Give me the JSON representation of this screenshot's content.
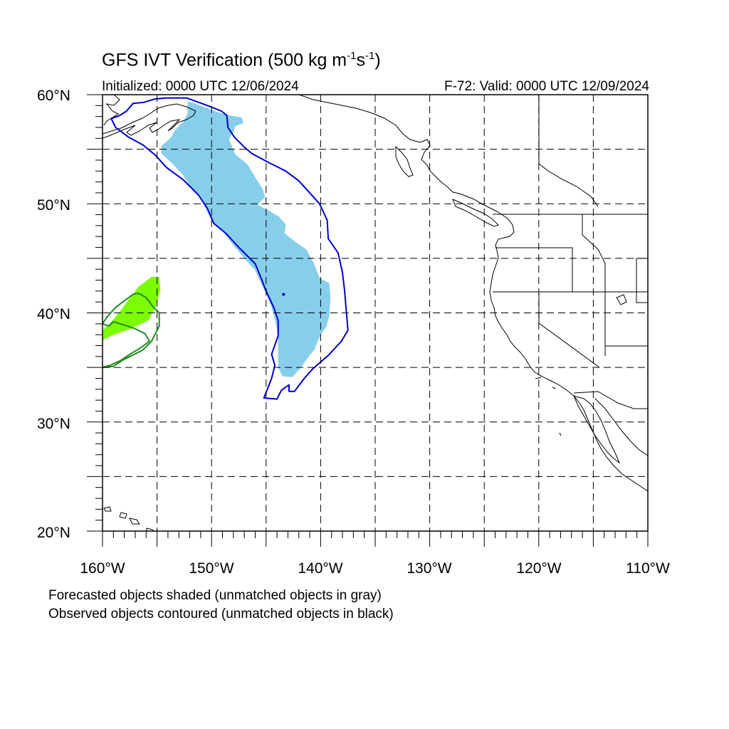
{
  "title": {
    "main": "GFS IVT Verification (500 kg m",
    "exp1": "-1",
    "mid": "s",
    "exp2": "-1",
    "close": ")"
  },
  "init_label": "Initialized: 0000 UTC 12/06/2024",
  "valid_label": "F-72: Valid: 0000 UTC 12/09/2024",
  "lat_labels": [
    "60°N",
    "50°N",
    "40°N",
    "30°N",
    "20°N"
  ],
  "lon_labels": [
    "160°W",
    "150°W",
    "140°W",
    "130°W",
    "120°W",
    "110°W"
  ],
  "legend": {
    "line1": "Forecasted objects shaded (unmatched objects in gray)",
    "line2": "Observed objects contoured (unmatched objects in black)"
  },
  "map": {
    "lon_range": [
      -160,
      -110
    ],
    "lat_range": [
      20,
      60
    ],
    "grid_lons": [
      -155,
      -150,
      -145,
      -140,
      -135,
      -130,
      -125,
      -120,
      -115
    ],
    "grid_lats": [
      25,
      30,
      35,
      40,
      45,
      50,
      55
    ],
    "colors": {
      "forecast_object_1": "#87CEEB",
      "observed_object_1": "#0000CD",
      "forecast_object_2": "#7CFC00",
      "observed_object_2": "#228B22",
      "coastline": "#000000"
    },
    "forecast_objects": [
      {
        "id": "fc-ar-main",
        "color": "#87CEEB",
        "points": [
          [
            -152.2,
            59.4
          ],
          [
            -151.0,
            59.0
          ],
          [
            -149.7,
            58.5
          ],
          [
            -148.8,
            58.2
          ],
          [
            -147.2,
            57.9
          ],
          [
            -147.1,
            57.4
          ],
          [
            -147.8,
            57.1
          ],
          [
            -148.0,
            56.6
          ],
          [
            -148.4,
            55.9
          ],
          [
            -147.8,
            54.5
          ],
          [
            -146.7,
            53.6
          ],
          [
            -145.8,
            52.1
          ],
          [
            -145.3,
            51.3
          ],
          [
            -145.1,
            50.6
          ],
          [
            -145.8,
            49.9
          ],
          [
            -144.8,
            49.4
          ],
          [
            -143.8,
            48.8
          ],
          [
            -143.2,
            48.1
          ],
          [
            -143.3,
            47.3
          ],
          [
            -142.3,
            46.5
          ],
          [
            -141.3,
            45.8
          ],
          [
            -140.6,
            44.5
          ],
          [
            -140.1,
            43.2
          ],
          [
            -139.2,
            42.7
          ],
          [
            -139.1,
            41.4
          ],
          [
            -139.2,
            39.8
          ],
          [
            -139.5,
            38.7
          ],
          [
            -140.0,
            38.0
          ],
          [
            -140.6,
            36.6
          ],
          [
            -141.1,
            36.0
          ],
          [
            -141.8,
            35.0
          ],
          [
            -142.6,
            34.1
          ],
          [
            -143.5,
            34.2
          ],
          [
            -143.9,
            35.0
          ],
          [
            -143.9,
            37.9
          ],
          [
            -144.1,
            39.0
          ],
          [
            -144.5,
            40.5
          ],
          [
            -145.0,
            41.7
          ],
          [
            -145.5,
            42.8
          ],
          [
            -146.0,
            43.9
          ],
          [
            -147.0,
            45.0
          ],
          [
            -148.0,
            46.2
          ],
          [
            -149.0,
            47.5
          ],
          [
            -150.0,
            48.5
          ],
          [
            -150.5,
            49.5
          ],
          [
            -151.0,
            50.6
          ],
          [
            -151.9,
            51.5
          ],
          [
            -152.6,
            52.6
          ],
          [
            -153.5,
            53.6
          ],
          [
            -154.6,
            54.6
          ],
          [
            -154.6,
            55.3
          ],
          [
            -153.8,
            56.0
          ],
          [
            -153.3,
            56.8
          ],
          [
            -152.6,
            57.5
          ],
          [
            -152.2,
            58.3
          ]
        ]
      },
      {
        "id": "fc-green-west",
        "color": "#7CFC00",
        "points": [
          [
            -160.0,
            38.4
          ],
          [
            -159.0,
            39.4
          ],
          [
            -158.2,
            40.4
          ],
          [
            -157.6,
            41.2
          ],
          [
            -156.7,
            42.4
          ],
          [
            -155.5,
            43.3
          ],
          [
            -154.8,
            43.3
          ],
          [
            -154.7,
            42.1
          ],
          [
            -155.1,
            40.6
          ],
          [
            -155.8,
            39.3
          ],
          [
            -157.5,
            38.5
          ],
          [
            -159.0,
            38.0
          ],
          [
            -160.0,
            37.5
          ]
        ]
      }
    ],
    "observed_objects": [
      {
        "id": "obs-ar-main",
        "color": "#0000CD",
        "points": [
          [
            -154.2,
            59.7
          ],
          [
            -152.3,
            59.7
          ],
          [
            -150.9,
            59.2
          ],
          [
            -150.1,
            58.9
          ],
          [
            -149.1,
            58.5
          ],
          [
            -148.6,
            58.1
          ],
          [
            -148.5,
            57.0
          ],
          [
            -147.9,
            56.1
          ],
          [
            -147.0,
            55.2
          ],
          [
            -146.3,
            54.6
          ],
          [
            -144.8,
            53.8
          ],
          [
            -143.2,
            53.0
          ],
          [
            -142.0,
            52.1
          ],
          [
            -141.0,
            51.0
          ],
          [
            -140.1,
            50.0
          ],
          [
            -139.4,
            48.5
          ],
          [
            -139.3,
            46.8
          ],
          [
            -138.4,
            45.5
          ],
          [
            -138.0,
            43.7
          ],
          [
            -137.8,
            42.0
          ],
          [
            -137.7,
            40.8
          ],
          [
            -137.6,
            39.6
          ],
          [
            -137.5,
            38.4
          ],
          [
            -138.1,
            37.4
          ],
          [
            -139.3,
            36.1
          ],
          [
            -140.7,
            34.9
          ],
          [
            -141.5,
            34.0
          ],
          [
            -142.4,
            32.8
          ],
          [
            -142.9,
            32.8
          ],
          [
            -142.9,
            33.4
          ],
          [
            -143.2,
            33.2
          ],
          [
            -143.6,
            32.9
          ],
          [
            -144.0,
            32.1
          ],
          [
            -145.2,
            32.2
          ],
          [
            -144.5,
            34.0
          ],
          [
            -144.2,
            35.2
          ],
          [
            -144.5,
            36.2
          ],
          [
            -143.9,
            37.9
          ],
          [
            -143.9,
            39.3
          ],
          [
            -144.3,
            40.5
          ],
          [
            -145.0,
            42.0
          ],
          [
            -145.5,
            43.3
          ],
          [
            -146.0,
            44.5
          ],
          [
            -147.5,
            46.0
          ],
          [
            -148.7,
            47.3
          ],
          [
            -149.8,
            48.2
          ],
          [
            -150.4,
            49.6
          ],
          [
            -151.2,
            50.8
          ],
          [
            -152.6,
            52.2
          ],
          [
            -154.1,
            53.3
          ],
          [
            -155.2,
            54.5
          ],
          [
            -156.3,
            55.4
          ],
          [
            -157.6,
            56.1
          ],
          [
            -158.8,
            57.0
          ],
          [
            -159.2,
            57.8
          ],
          [
            -158.4,
            58.1
          ],
          [
            -157.8,
            58.5
          ],
          [
            -157.2,
            59.2
          ],
          [
            -156.2,
            59.3
          ],
          [
            -155.2,
            59.6
          ]
        ]
      },
      {
        "id": "obs-green-west",
        "color": "#228B22",
        "points": [
          [
            -160.0,
            35.0
          ],
          [
            -159.0,
            35.1
          ],
          [
            -158.1,
            35.7
          ],
          [
            -157.3,
            36.1
          ],
          [
            -156.3,
            36.6
          ],
          [
            -155.5,
            37.4
          ],
          [
            -154.8,
            38.8
          ],
          [
            -154.8,
            40.0
          ],
          [
            -155.4,
            40.6
          ],
          [
            -156.0,
            41.4
          ],
          [
            -156.7,
            41.8
          ],
          [
            -157.2,
            41.7
          ],
          [
            -158.0,
            41.1
          ],
          [
            -158.8,
            40.5
          ],
          [
            -159.6,
            39.6
          ],
          [
            -160.0,
            39.0
          ],
          [
            -159.4,
            38.8
          ],
          [
            -159.0,
            39.2
          ],
          [
            -158.4,
            39.0
          ],
          [
            -157.7,
            38.8
          ],
          [
            -156.9,
            38.5
          ],
          [
            -156.1,
            38.1
          ],
          [
            -155.7,
            37.4
          ],
          [
            -156.5,
            36.8
          ],
          [
            -157.5,
            36.2
          ],
          [
            -158.4,
            35.6
          ],
          [
            -159.3,
            35.2
          ],
          [
            -160.0,
            35.0
          ]
        ]
      }
    ]
  }
}
